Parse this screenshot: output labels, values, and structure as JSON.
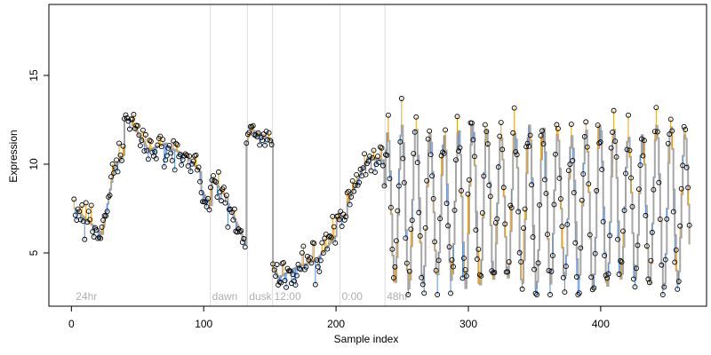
{
  "chart_data": {
    "type": "scatter",
    "xlabel": "Sample index",
    "ylabel": "Expression",
    "xlim": [
      -17,
      480
    ],
    "ylim": [
      2,
      19
    ],
    "xticks": [
      0,
      100,
      200,
      300,
      400
    ],
    "yticks": [
      5,
      10,
      15
    ],
    "phase_markers": [
      {
        "x": 2,
        "label": "24hr"
      },
      {
        "x": 105,
        "label": "dawn"
      },
      {
        "x": 133,
        "label": "dusk"
      },
      {
        "x": 152,
        "label": "12:00"
      },
      {
        "x": 203,
        "label": "0:00"
      },
      {
        "x": 237,
        "label": "48hr"
      }
    ],
    "colors": {
      "fitted_line": "#a6a6a6",
      "residual_positive": "#e8a31a",
      "residual_negative": "#5b8fd6",
      "marker_rule": "#dcdcdc",
      "phase_label": "#b0b0b0"
    },
    "segments": [
      {
        "x0": 2,
        "x1": 12,
        "y0": 7.5,
        "y1": 6.8,
        "noise": 0.9
      },
      {
        "x0": 12,
        "x1": 24,
        "y0": 6.8,
        "y1": 6.0,
        "noise": 0.9
      },
      {
        "x0": 24,
        "x1": 32,
        "y0": 6.5,
        "y1": 9.8,
        "noise": 0.8
      },
      {
        "x0": 32,
        "x1": 40,
        "y0": 9.8,
        "y1": 10.6,
        "noise": 0.6
      },
      {
        "x0": 40,
        "x1": 46,
        "y0": 12.6,
        "y1": 12.4,
        "noise": 0.5
      },
      {
        "x0": 46,
        "x1": 58,
        "y0": 12.2,
        "y1": 10.8,
        "noise": 0.8
      },
      {
        "x0": 58,
        "x1": 72,
        "y0": 10.8,
        "y1": 11.2,
        "noise": 1.0
      },
      {
        "x0": 72,
        "x1": 86,
        "y0": 11.0,
        "y1": 10.5,
        "noise": 1.0
      },
      {
        "x0": 86,
        "x1": 98,
        "y0": 10.5,
        "y1": 9.5,
        "noise": 1.0
      },
      {
        "x0": 98,
        "x1": 106,
        "y0": 8.5,
        "y1": 7.6,
        "noise": 0.9
      },
      {
        "x0": 106,
        "x1": 118,
        "y0": 9.2,
        "y1": 8.0,
        "noise": 0.6
      },
      {
        "x0": 118,
        "x1": 132,
        "y0": 7.8,
        "y1": 5.4,
        "noise": 1.0
      },
      {
        "x0": 133,
        "x1": 137,
        "y0": 11.5,
        "y1": 12.0,
        "noise": 0.4
      },
      {
        "x0": 137,
        "x1": 152,
        "y0": 11.9,
        "y1": 11.3,
        "noise": 0.5
      },
      {
        "x0": 152,
        "x1": 156,
        "y0": 4.2,
        "y1": 3.6,
        "noise": 0.6
      },
      {
        "x0": 156,
        "x1": 170,
        "y0": 3.6,
        "y1": 4.2,
        "noise": 1.0
      },
      {
        "x0": 170,
        "x1": 185,
        "y0": 4.2,
        "y1": 4.6,
        "noise": 1.1
      },
      {
        "x0": 185,
        "x1": 200,
        "y0": 4.6,
        "y1": 6.0,
        "noise": 1.0
      },
      {
        "x0": 200,
        "x1": 208,
        "y0": 6.8,
        "y1": 7.2,
        "noise": 0.7
      },
      {
        "x0": 208,
        "x1": 224,
        "y0": 7.8,
        "y1": 10.4,
        "noise": 0.7
      },
      {
        "x0": 224,
        "x1": 236,
        "y0": 10.4,
        "y1": 10.2,
        "noise": 0.7
      }
    ],
    "oscillation": {
      "x_start": 236,
      "x_end": 467,
      "mid": 7.6,
      "amp": 4.3,
      "period": 10.7,
      "noise": 1.3
    },
    "n_points": 465
  }
}
